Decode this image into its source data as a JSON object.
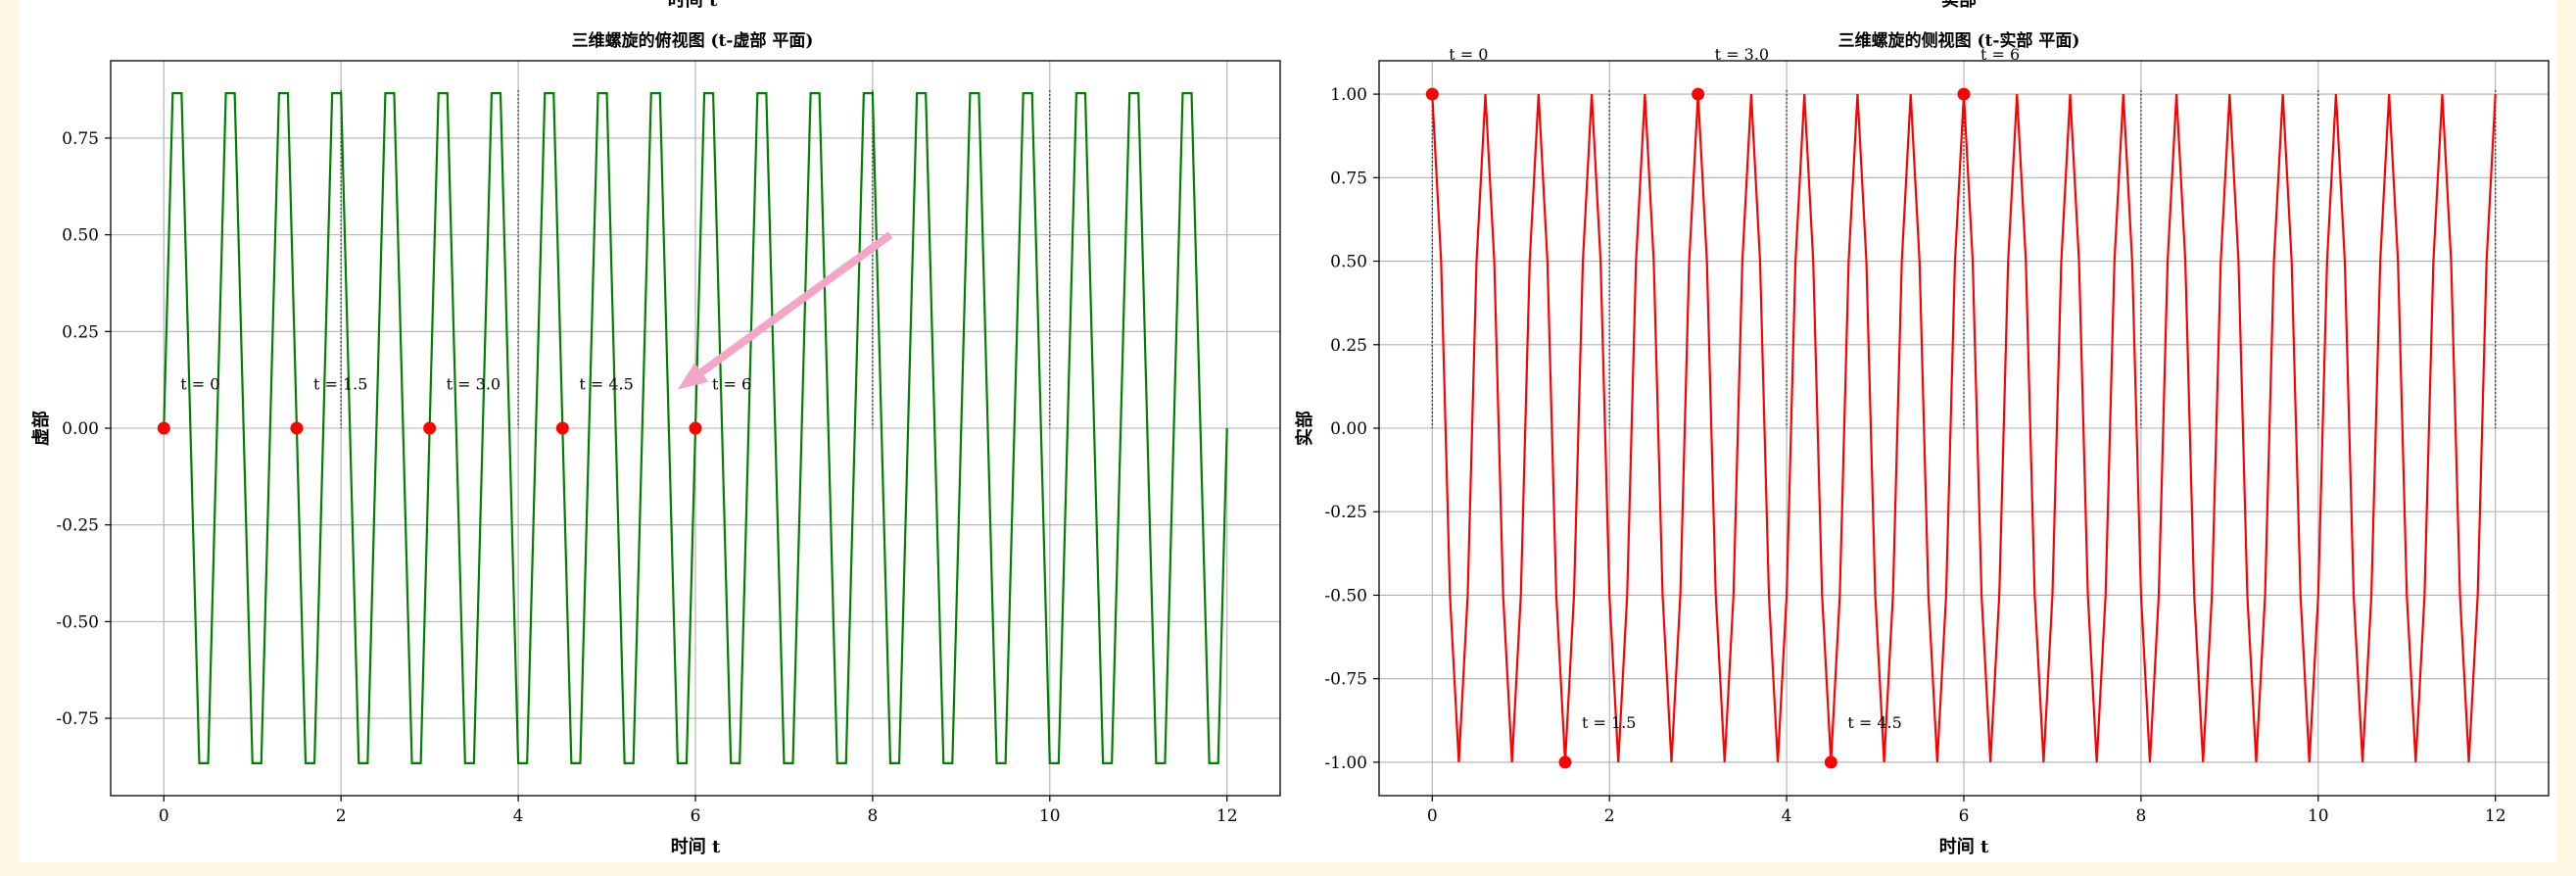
{
  "figure": {
    "top_cut_labels": [
      "时间 t",
      "实部"
    ]
  },
  "chart_data": [
    {
      "type": "line",
      "title": "三维螺旋的俯视图 (t-虚部 平面)",
      "xlabel": "时间 t",
      "ylabel": "虚部",
      "xlim": [
        -0.6,
        12.6
      ],
      "ylim": [
        -0.95,
        0.95
      ],
      "xticks": [
        0,
        2,
        4,
        6,
        8,
        10,
        12
      ],
      "yticks": [
        -0.75,
        -0.5,
        -0.25,
        0.0,
        0.25,
        0.5,
        0.75
      ],
      "ytick_labels": [
        "-0.75",
        "-0.50",
        "-0.25",
        "0.00",
        "0.25",
        "0.50",
        "0.75"
      ],
      "grid": true,
      "series": [
        {
          "color": "#008000",
          "function": "sin(2*pi*t/0.6), sampled every 0.1"
        }
      ],
      "vertical_dotted_lines_x": [
        2,
        4,
        8,
        10
      ],
      "points": [
        {
          "x": 0,
          "y": 0,
          "label": "t = 0"
        },
        {
          "x": 1.5,
          "y": 0,
          "label": "t = 1.5"
        },
        {
          "x": 3.0,
          "y": 0,
          "label": "t = 3.0"
        },
        {
          "x": 4.5,
          "y": 0,
          "label": "t = 4.5"
        },
        {
          "x": 6,
          "y": 0,
          "label": "t = 6"
        }
      ],
      "point_color": "#ff0000",
      "arrow": {
        "from": [
          8.2,
          0.5
        ],
        "to": [
          5.8,
          0.1
        ],
        "color": "#f4a6c8"
      }
    },
    {
      "type": "line",
      "title": "三维螺旋的侧视图 (t-实部 平面)",
      "xlabel": "时间 t",
      "ylabel": "实部",
      "xlim": [
        -0.6,
        12.6
      ],
      "ylim": [
        -1.1,
        1.1
      ],
      "xticks": [
        0,
        2,
        4,
        6,
        8,
        10,
        12
      ],
      "yticks": [
        -1.0,
        -0.75,
        -0.5,
        -0.25,
        0.0,
        0.25,
        0.5,
        0.75,
        1.0
      ],
      "ytick_labels": [
        "-1.00",
        "-0.75",
        "-0.50",
        "-0.25",
        "0.00",
        "0.25",
        "0.50",
        "0.75",
        "1.00"
      ],
      "grid": true,
      "series": [
        {
          "color": "#ff0000",
          "function": "cos(2*pi*t/0.6), sampled every 0.1"
        }
      ],
      "vertical_dotted_lines_x": [
        0,
        2,
        4,
        6,
        8,
        10,
        12
      ],
      "points": [
        {
          "x": 0,
          "y": 1.0,
          "label": "t = 0"
        },
        {
          "x": 1.5,
          "y": -1.0,
          "label": "t = 1.5"
        },
        {
          "x": 3.0,
          "y": 1.0,
          "label": "t = 3.0"
        },
        {
          "x": 4.5,
          "y": -1.0,
          "label": "t = 4.5"
        },
        {
          "x": 6,
          "y": 1.0,
          "label": "t = 6"
        }
      ],
      "point_color": "#ff0000"
    }
  ]
}
